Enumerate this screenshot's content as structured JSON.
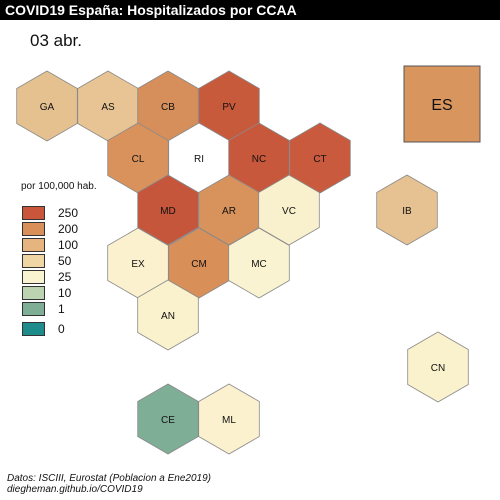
{
  "title": "COVID19 España: Hospitalizados por CCAA",
  "date": "03 abr.",
  "legend": {
    "title": "por 100,000 hab.",
    "items": [
      {
        "label": "250",
        "color": "#c9553a"
      },
      {
        "label": "200",
        "color": "#d98f58"
      },
      {
        "label": "100",
        "color": "#e5b47f"
      },
      {
        "label": "50",
        "color": "#efd6a4"
      },
      {
        "label": "25",
        "color": "#faf3d2"
      },
      {
        "label": "10",
        "color": "#bcd4b2"
      },
      {
        "label": "1",
        "color": "#7fae96"
      },
      {
        "label": "0",
        "color": "#1f8c8c"
      }
    ]
  },
  "map": {
    "regions": [
      {
        "code": "GA",
        "color": "#e5c190"
      },
      {
        "code": "AS",
        "color": "#e8c494"
      },
      {
        "code": "CB",
        "color": "#d68e5a"
      },
      {
        "code": "PV",
        "color": "#c85a3c"
      },
      {
        "code": "CL",
        "color": "#d9925c"
      },
      {
        "code": "RI",
        "color": "#ffffff"
      },
      {
        "code": "NC",
        "color": "#c8583c"
      },
      {
        "code": "CT",
        "color": "#c95a3d"
      },
      {
        "code": "MD",
        "color": "#c5553b"
      },
      {
        "code": "AR",
        "color": "#d8925c"
      },
      {
        "code": "VC",
        "color": "#f9f1cd"
      },
      {
        "code": "IB",
        "color": "#e6c292"
      },
      {
        "code": "EX",
        "color": "#fbf1cf"
      },
      {
        "code": "CM",
        "color": "#d88f58"
      },
      {
        "code": "MC",
        "color": "#faf3d2"
      },
      {
        "code": "AN",
        "color": "#faf1cd"
      },
      {
        "code": "CN",
        "color": "#faf1cd"
      },
      {
        "code": "CE",
        "color": "#7fae96"
      },
      {
        "code": "ML",
        "color": "#fbf1cf"
      }
    ],
    "national": {
      "code": "ES",
      "color": "#d8955e"
    }
  },
  "caption": {
    "line1": "Datos: ISCIII, Eurostat (Poblacion a Ene2019)",
    "line2": "diegheman.github.io/COVID19"
  }
}
